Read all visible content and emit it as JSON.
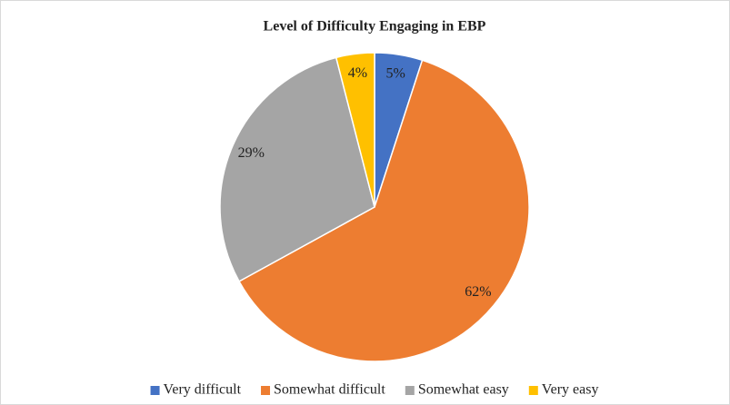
{
  "chart_data": {
    "type": "pie",
    "title": "Level of Difficulty Engaging in EBP",
    "categories": [
      "Very difficult",
      "Somewhat difficult",
      "Somewhat easy",
      "Very easy"
    ],
    "values": [
      5,
      62,
      29,
      4
    ],
    "value_labels": [
      "5%",
      "62%",
      "29%",
      "4%"
    ],
    "colors": [
      "#4472c4",
      "#ed7d31",
      "#a5a5a5",
      "#ffc000"
    ],
    "legend": "bottom"
  }
}
